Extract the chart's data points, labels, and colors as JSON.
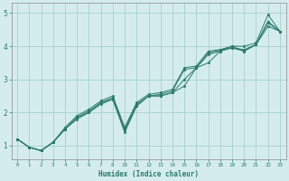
{
  "xlabel": "Humidex (Indice chaleur)",
  "bg_color": "#d4edec",
  "grid_color": "#a8d0ce",
  "line_color": "#2a7a6a",
  "spine_color": "#888888",
  "categories": [
    "0",
    "1",
    "2",
    "3",
    "4",
    "5",
    "6",
    "7",
    "8",
    "10",
    "11",
    "12",
    "13",
    "14",
    "15",
    "16",
    "17",
    "18",
    "19",
    "20",
    "21",
    "22",
    "23"
  ],
  "yticks": [
    1,
    2,
    3,
    4,
    5
  ],
  "ylim": [
    0.6,
    5.3
  ],
  "lines": [
    {
      "y": [
        1.2,
        0.95,
        0.85,
        1.1,
        1.5,
        1.8,
        2.0,
        2.25,
        2.4,
        1.4,
        2.2,
        2.5,
        2.5,
        2.6,
        2.8,
        3.35,
        3.5,
        3.85,
        4.0,
        3.85,
        4.05,
        4.6,
        4.45
      ]
    },
    {
      "y": [
        1.2,
        0.95,
        0.85,
        1.1,
        1.55,
        1.9,
        2.1,
        2.35,
        2.5,
        1.55,
        2.3,
        2.55,
        2.6,
        2.7,
        3.35,
        3.4,
        3.85,
        3.9,
        4.0,
        4.0,
        4.1,
        4.95,
        4.45
      ]
    },
    {
      "y": [
        1.2,
        0.95,
        0.85,
        1.1,
        1.5,
        1.85,
        2.0,
        2.3,
        2.45,
        1.5,
        2.25,
        2.5,
        2.55,
        2.65,
        3.3,
        3.35,
        3.8,
        3.88,
        3.95,
        3.9,
        4.05,
        4.75,
        4.45
      ]
    },
    {
      "y": [
        1.2,
        0.95,
        0.85,
        1.1,
        1.5,
        1.85,
        2.05,
        2.3,
        2.4,
        1.45,
        2.2,
        2.5,
        2.5,
        2.6,
        3.0,
        3.35,
        3.75,
        3.85,
        3.95,
        3.85,
        4.05,
        4.7,
        4.45
      ]
    }
  ]
}
